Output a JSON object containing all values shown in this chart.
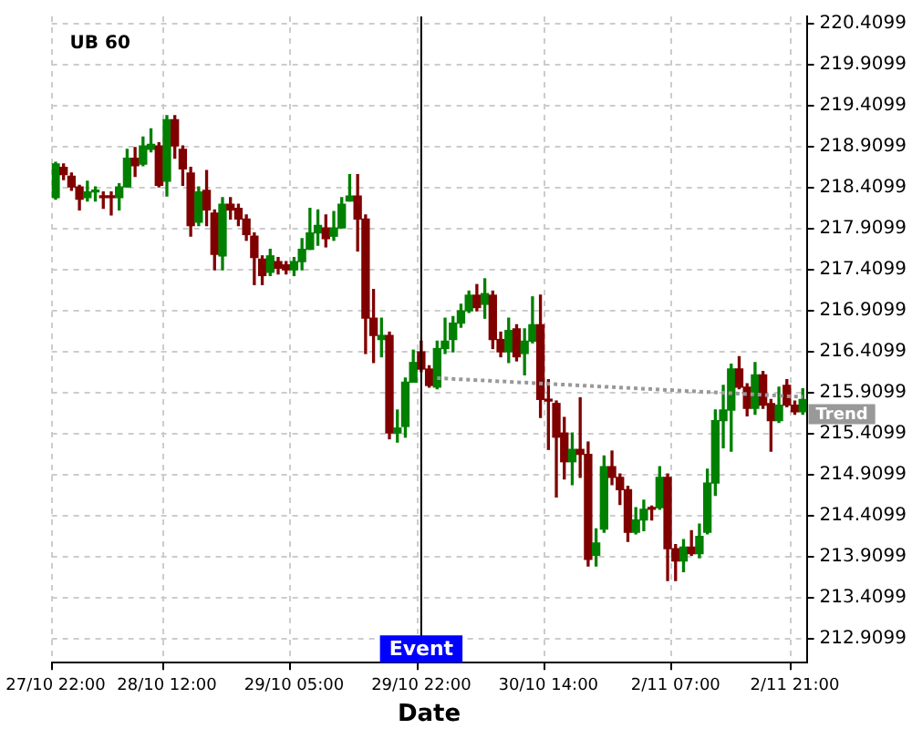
{
  "chart_data": {
    "type": "candlestick",
    "title": "UB 60",
    "xlabel": "Date",
    "categories": [
      "27/10 22:00",
      null,
      null,
      null,
      null,
      null,
      null,
      null,
      null,
      null,
      null,
      null,
      null,
      null,
      "28/10 12:00",
      null,
      null,
      null,
      null,
      null,
      null,
      null,
      null,
      null,
      null,
      null,
      null,
      null,
      null,
      null,
      "29/10 05:00",
      null,
      null,
      null,
      null,
      null,
      null,
      null,
      null,
      null,
      null,
      null,
      null,
      null,
      null,
      null,
      "29/10 22:00",
      null,
      null,
      null,
      null,
      null,
      null,
      null,
      null,
      null,
      null,
      null,
      null,
      null,
      null,
      null,
      "30/10 14:00",
      null,
      null,
      null,
      null,
      null,
      null,
      null,
      null,
      null,
      null,
      null,
      null,
      null,
      null,
      null,
      "2/11 07:00",
      null,
      null,
      null,
      null,
      null,
      null,
      null,
      null,
      null,
      null,
      null,
      null,
      null,
      null,
      "2/11 21:00",
      null
    ],
    "ohlc": [
      [
        218.29,
        218.72,
        218.27,
        218.7
      ],
      [
        218.66,
        218.7,
        218.51,
        218.57
      ],
      [
        218.55,
        218.59,
        218.38,
        218.42
      ],
      [
        218.42,
        218.44,
        218.14,
        218.27
      ],
      [
        218.29,
        218.49,
        218.25,
        218.36
      ],
      [
        218.36,
        218.42,
        218.25,
        218.38
      ],
      [
        218.31,
        218.36,
        218.16,
        218.29
      ],
      [
        218.31,
        218.36,
        218.08,
        218.29
      ],
      [
        218.29,
        218.46,
        218.14,
        218.42
      ],
      [
        218.42,
        218.88,
        218.42,
        218.77
      ],
      [
        218.77,
        218.9,
        218.55,
        218.68
      ],
      [
        218.7,
        219.03,
        218.68,
        218.92
      ],
      [
        218.88,
        219.13,
        218.85,
        218.94
      ],
      [
        218.92,
        218.96,
        218.42,
        218.44
      ],
      [
        218.49,
        219.29,
        218.31,
        219.24
      ],
      [
        219.24,
        219.29,
        218.77,
        218.92
      ],
      [
        218.88,
        218.92,
        218.44,
        218.64
      ],
      [
        218.59,
        218.66,
        217.82,
        217.95
      ],
      [
        217.99,
        218.42,
        217.95,
        218.36
      ],
      [
        218.38,
        218.62,
        217.95,
        218.14
      ],
      [
        218.1,
        218.14,
        217.41,
        217.6
      ],
      [
        217.58,
        218.29,
        217.41,
        218.21
      ],
      [
        218.21,
        218.29,
        218.03,
        218.14
      ],
      [
        218.16,
        218.21,
        217.95,
        218.03
      ],
      [
        218.03,
        218.08,
        217.77,
        217.84
      ],
      [
        217.82,
        217.86,
        217.23,
        217.56
      ],
      [
        217.54,
        217.58,
        217.23,
        217.34
      ],
      [
        217.38,
        217.66,
        217.34,
        217.58
      ],
      [
        217.51,
        217.56,
        217.36,
        217.43
      ],
      [
        217.47,
        217.51,
        217.36,
        217.41
      ],
      [
        217.41,
        217.56,
        217.34,
        217.51
      ],
      [
        217.51,
        217.79,
        217.41,
        217.66
      ],
      [
        217.66,
        218.16,
        217.66,
        217.86
      ],
      [
        217.86,
        218.14,
        217.71,
        217.95
      ],
      [
        217.92,
        218.08,
        217.69,
        217.79
      ],
      [
        217.82,
        218.12,
        217.77,
        217.92
      ],
      [
        217.92,
        218.29,
        217.92,
        218.21
      ],
      [
        218.25,
        218.57,
        218.25,
        218.31
      ],
      [
        218.31,
        218.57,
        217.64,
        218.03
      ],
      [
        218.03,
        218.08,
        216.39,
        216.82
      ],
      [
        216.82,
        217.17,
        216.28,
        216.61
      ],
      [
        216.56,
        216.82,
        216.35,
        216.61
      ],
      [
        216.61,
        216.65,
        215.35,
        215.42
      ],
      [
        215.42,
        215.7,
        215.31,
        215.48
      ],
      [
        215.5,
        216.09,
        215.37,
        216.04
      ],
      [
        216.04,
        216.43,
        216.04,
        216.28
      ],
      [
        216.41,
        216.54,
        216.17,
        216.2
      ],
      [
        216.2,
        216.24,
        215.98,
        216.0
      ],
      [
        215.98,
        216.54,
        215.96,
        216.45
      ],
      [
        216.45,
        216.82,
        216.39,
        216.54
      ],
      [
        216.56,
        216.84,
        216.41,
        216.76
      ],
      [
        216.76,
        216.99,
        216.71,
        216.91
      ],
      [
        216.91,
        217.15,
        216.89,
        217.1
      ],
      [
        217.1,
        217.23,
        216.91,
        216.95
      ],
      [
        216.99,
        217.3,
        216.82,
        217.12
      ],
      [
        217.1,
        217.15,
        216.45,
        216.56
      ],
      [
        216.56,
        216.65,
        216.35,
        216.41
      ],
      [
        216.41,
        216.82,
        216.28,
        216.67
      ],
      [
        216.69,
        216.74,
        216.3,
        216.35
      ],
      [
        216.39,
        216.69,
        216.13,
        216.54
      ],
      [
        216.54,
        217.08,
        216.52,
        216.74
      ],
      [
        216.74,
        217.1,
        215.61,
        215.83
      ],
      [
        215.83,
        216.07,
        215.22,
        215.81
      ],
      [
        215.78,
        215.81,
        214.64,
        215.37
      ],
      [
        215.42,
        215.61,
        214.86,
        215.07
      ],
      [
        215.07,
        215.42,
        214.79,
        215.22
      ],
      [
        215.22,
        215.85,
        214.88,
        215.16
      ],
      [
        215.16,
        215.31,
        213.8,
        213.88
      ],
      [
        213.93,
        214.25,
        213.8,
        214.08
      ],
      [
        214.25,
        215.14,
        214.21,
        215.01
      ],
      [
        215.01,
        215.2,
        214.79,
        214.88
      ],
      [
        214.88,
        214.92,
        214.55,
        214.73
      ],
      [
        214.73,
        214.77,
        214.1,
        214.21
      ],
      [
        214.21,
        214.51,
        214.19,
        214.36
      ],
      [
        214.36,
        214.6,
        214.23,
        214.49
      ],
      [
        214.51,
        214.53,
        214.36,
        214.49
      ],
      [
        214.51,
        215.01,
        214.49,
        214.88
      ],
      [
        214.88,
        214.92,
        213.62,
        214.01
      ],
      [
        214.01,
        214.06,
        213.62,
        213.86
      ],
      [
        213.86,
        214.12,
        213.73,
        214.03
      ],
      [
        214.03,
        214.23,
        213.93,
        213.95
      ],
      [
        213.95,
        214.31,
        213.9,
        214.16
      ],
      [
        214.21,
        214.98,
        214.19,
        214.81
      ],
      [
        214.81,
        215.7,
        214.66,
        215.57
      ],
      [
        215.57,
        216.0,
        215.24,
        215.7
      ],
      [
        215.7,
        216.26,
        215.2,
        216.2
      ],
      [
        216.2,
        216.35,
        215.96,
        215.98
      ],
      [
        215.98,
        216.02,
        215.63,
        215.72
      ],
      [
        215.72,
        216.28,
        215.65,
        216.13
      ],
      [
        216.13,
        216.17,
        215.72,
        215.76
      ],
      [
        215.78,
        215.83,
        215.2,
        215.57
      ],
      [
        215.57,
        215.98,
        215.55,
        215.76
      ],
      [
        216.0,
        216.07,
        215.74,
        215.76
      ],
      [
        215.76,
        215.81,
        215.65,
        215.68
      ],
      [
        215.68,
        215.96,
        215.65,
        215.83
      ]
    ],
    "colors": [
      "#008000",
      "#800000",
      "#800000",
      "#800000",
      "#008000",
      "#008000",
      "#800000",
      "#800000",
      "#008000",
      "#008000",
      "#800000",
      "#008000",
      "#008000",
      "#800000",
      "#008000",
      "#800000",
      "#800000",
      "#800000",
      "#008000",
      "#800000",
      "#800000",
      "#008000",
      "#800000",
      "#800000",
      "#800000",
      "#800000",
      "#800000",
      "#008000",
      "#800000",
      "#800000",
      "#008000",
      "#008000",
      "#008000",
      "#008000",
      "#800000",
      "#008000",
      "#008000",
      "#008000",
      "#800000",
      "#800000",
      "#800000",
      "#008000",
      "#800000",
      "#008000",
      "#008000",
      "#008000",
      "#800000",
      "#800000",
      "#008000",
      "#008000",
      "#008000",
      "#008000",
      "#008000",
      "#800000",
      "#008000",
      "#800000",
      "#800000",
      "#008000",
      "#800000",
      "#008000",
      "#008000",
      "#800000",
      "#800000",
      "#800000",
      "#800000",
      "#008000",
      "#800000",
      "#800000",
      "#008000",
      "#008000",
      "#800000",
      "#800000",
      "#800000",
      "#008000",
      "#008000",
      "#800000",
      "#008000",
      "#800000",
      "#800000",
      "#008000",
      "#800000",
      "#008000",
      "#008000",
      "#008000",
      "#008000",
      "#008000",
      "#800000",
      "#800000",
      "#008000",
      "#800000",
      "#800000",
      "#008000",
      "#800000",
      "#800000",
      "#008000"
    ],
    "series": [
      {
        "name": "Trend",
        "type": "line",
        "color": "#999999",
        "line_style": "dotted",
        "values": [
          null,
          null,
          null,
          null,
          null,
          null,
          null,
          null,
          null,
          null,
          null,
          null,
          null,
          null,
          null,
          null,
          null,
          null,
          null,
          null,
          null,
          null,
          null,
          null,
          null,
          null,
          null,
          null,
          null,
          null,
          null,
          null,
          null,
          null,
          null,
          null,
          null,
          null,
          null,
          null,
          null,
          null,
          null,
          null,
          null,
          null,
          null,
          null,
          216.09,
          null,
          null,
          null,
          null,
          null,
          null,
          null,
          null,
          null,
          null,
          null,
          null,
          null,
          null,
          null,
          null,
          null,
          null,
          null,
          null,
          null,
          null,
          null,
          null,
          null,
          null,
          null,
          null,
          null,
          null,
          null,
          null,
          null,
          null,
          null,
          null,
          null,
          null,
          null,
          null,
          null,
          null,
          null,
          null,
          null,
          215.86
        ]
      }
    ],
    "ref_lines": [
      {
        "axis": "x",
        "value": "29/10 22:00",
        "label": "Event",
        "color": "#000000"
      }
    ],
    "ylim": [
      212.62,
      220.5
    ],
    "yticks": [
      212.9099,
      213.4099,
      213.9099,
      214.4099,
      214.9099,
      215.4099,
      215.9099,
      216.4099,
      216.9099,
      217.4099,
      217.9099,
      218.4099,
      218.9099,
      219.4099,
      219.9099,
      220.4099
    ],
    "grid": true,
    "legend": false
  }
}
